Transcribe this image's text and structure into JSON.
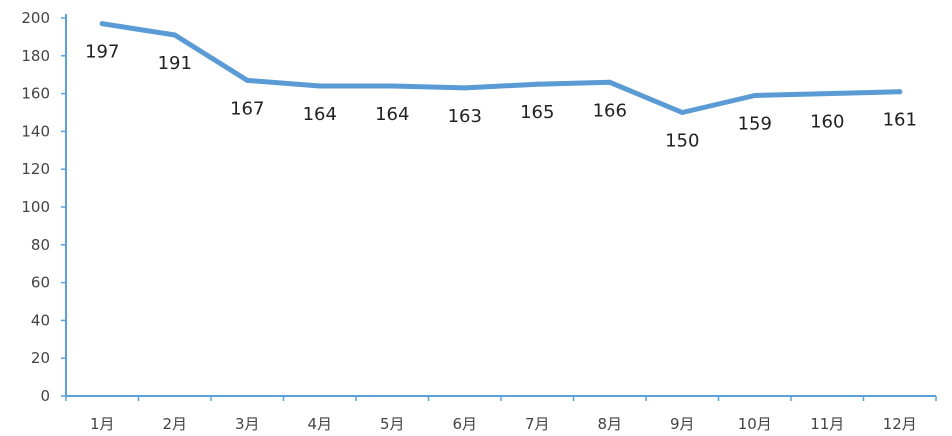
{
  "chart_data": {
    "type": "line",
    "categories": [
      "1月",
      "2月",
      "3月",
      "4月",
      "5月",
      "6月",
      "7月",
      "8月",
      "9月",
      "10月",
      "11月",
      "12月"
    ],
    "series": [
      {
        "values": [
          197,
          191,
          167,
          164,
          164,
          163,
          165,
          166,
          150,
          159,
          160,
          161
        ]
      }
    ],
    "y_ticks": [
      "0",
      "20",
      "40",
      "60",
      "80",
      "100",
      "120",
      "140",
      "160",
      "180",
      "200"
    ],
    "data_labels": [
      "197",
      "191",
      "167",
      "164",
      "164",
      "163",
      "165",
      "166",
      "150",
      "159",
      "160",
      "161"
    ],
    "ylim": [
      0,
      200
    ],
    "grid": false,
    "legend": "none",
    "colors": {
      "series": "#5b9bd5",
      "axis": "#5aa0dc"
    }
  }
}
